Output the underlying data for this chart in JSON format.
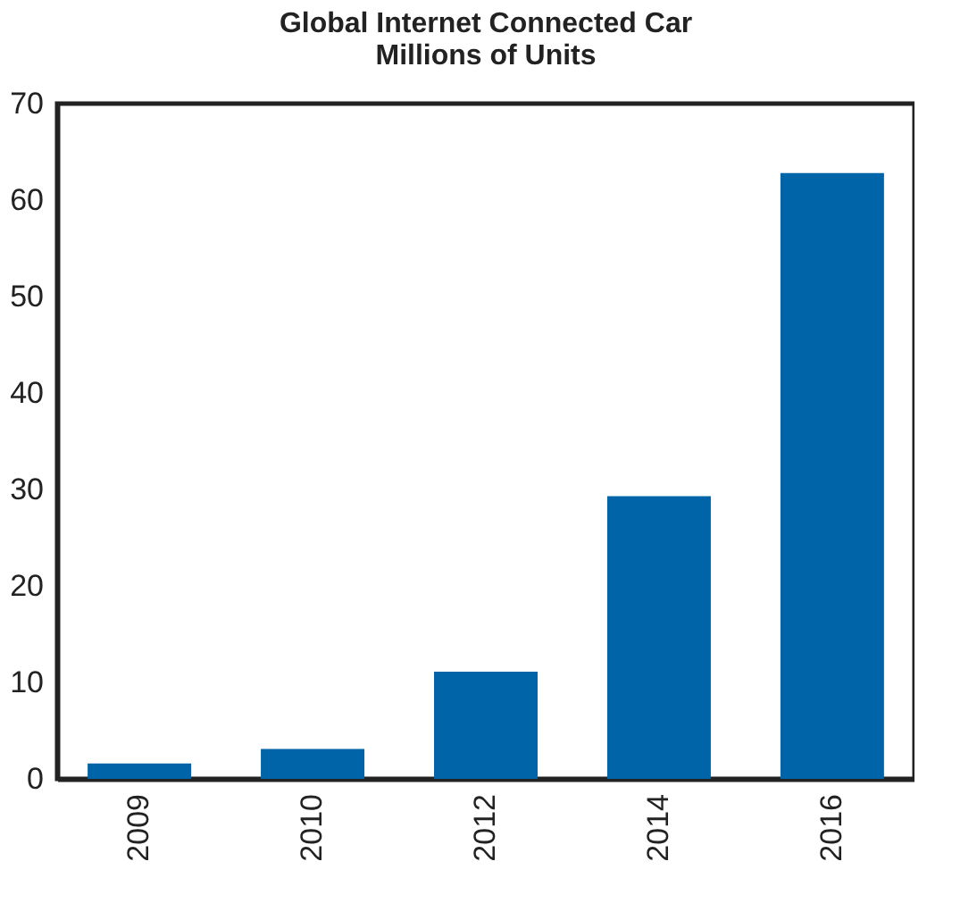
{
  "chart_data": {
    "type": "bar",
    "title": [
      "Global Internet Connected Car",
      "Millions of Units"
    ],
    "categories": [
      "2009",
      "2010",
      "2012",
      "2014",
      "2016"
    ],
    "values": [
      1.6,
      3.1,
      11.1,
      29.3,
      62.8
    ],
    "color": "#0065a8",
    "ylim": [
      0,
      70
    ],
    "yticks": [
      0,
      10,
      20,
      30,
      40,
      50,
      60,
      70
    ],
    "grid": false
  }
}
